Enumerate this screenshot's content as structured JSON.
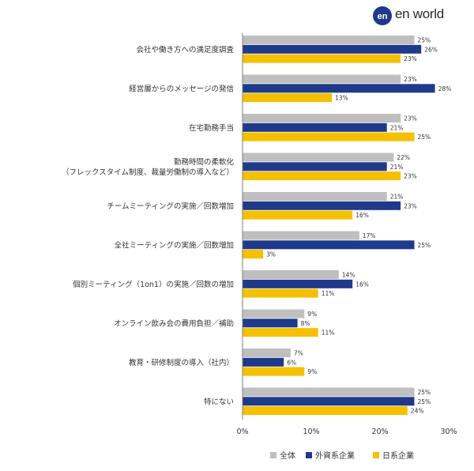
{
  "brand": {
    "name": "en world",
    "mark": "en"
  },
  "chart_data": {
    "type": "bar",
    "orientation": "horizontal",
    "categories": [
      "会社や働き方への満足度調査",
      "経営層からのメッセージの発信",
      "在宅勤務手当",
      "勤務時間の柔軟化\n（フレックスタイム制度、裁量労働制の導入など）",
      "チームミーティングの実施／回数増加",
      "全社ミーティングの実施／回数増加",
      "個別ミーティング（1on1）の実施／回数の増加",
      "オンライン飲み会の費用負担／補助",
      "教育・研修制度の導入（社内）",
      "特にない"
    ],
    "series": [
      {
        "name": "全体",
        "color": "#bfbfbf",
        "values": [
          25,
          23,
          23,
          22,
          21,
          17,
          14,
          9,
          7,
          25
        ]
      },
      {
        "name": "外資系企業",
        "color": "#1f3a8a",
        "values": [
          26,
          28,
          21,
          21,
          23,
          25,
          16,
          8,
          6,
          25
        ]
      },
      {
        "name": "日系企業",
        "color": "#f5c000",
        "values": [
          23,
          13,
          25,
          23,
          16,
          3,
          11,
          11,
          9,
          24
        ]
      }
    ],
    "value_suffix": "%",
    "xlim": [
      0,
      30
    ],
    "xticks": [
      "0%",
      "10%",
      "20%",
      "30%"
    ],
    "grid": false,
    "legend_position": "bottom"
  }
}
